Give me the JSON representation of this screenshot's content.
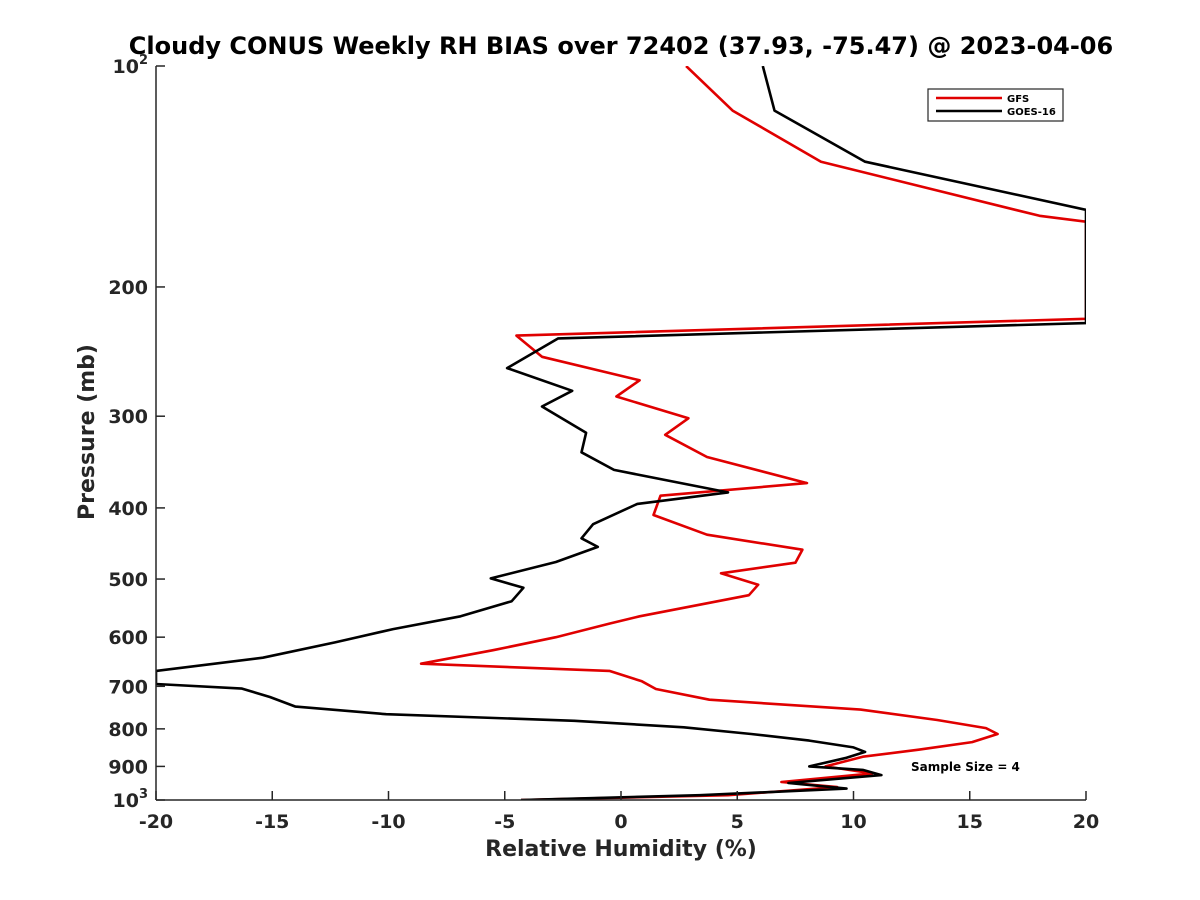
{
  "chart_data": {
    "type": "line",
    "title": "Cloudy CONUS Weekly RH BIAS over 72402 (37.93, -75.47) @ 2023-04-06",
    "xlabel": "Relative Humidity (%)",
    "ylabel": "Pressure (mb)",
    "xlim": [
      -20,
      20
    ],
    "ylim": [
      100,
      1000
    ],
    "y_scale": "log",
    "y_reversed": true,
    "grid": false,
    "legend_position": "top-right",
    "x_ticks": [
      -20,
      -15,
      -10,
      -5,
      0,
      5,
      10,
      15,
      20
    ],
    "x_tick_labels": [
      "-20",
      "-15",
      "-10",
      "-5",
      "0",
      "5",
      "10",
      "15",
      "20"
    ],
    "y_ticks": [
      100,
      200,
      300,
      400,
      500,
      600,
      700,
      800,
      900,
      1000
    ],
    "y_tick_labels": [
      {
        "value": 100,
        "base": "10",
        "exp": "2"
      },
      {
        "value": 200,
        "base": "200",
        "exp": ""
      },
      {
        "value": 300,
        "base": "300",
        "exp": ""
      },
      {
        "value": 400,
        "base": "400",
        "exp": ""
      },
      {
        "value": 500,
        "base": "500",
        "exp": ""
      },
      {
        "value": 600,
        "base": "600",
        "exp": ""
      },
      {
        "value": 700,
        "base": "700",
        "exp": ""
      },
      {
        "value": 800,
        "base": "800",
        "exp": ""
      },
      {
        "value": 900,
        "base": "900",
        "exp": ""
      },
      {
        "value": 1000,
        "base": "10",
        "exp": "3"
      }
    ],
    "annotation": "Sample Size = 4",
    "series": [
      {
        "name": "GFS",
        "color": "#e00000",
        "points": [
          [
            2.8,
            100
          ],
          [
            4.8,
            115
          ],
          [
            8.6,
            135
          ],
          [
            18.0,
            160
          ],
          [
            20.0,
            163
          ],
          [
            20.0,
            221
          ],
          [
            -4.5,
            233
          ],
          [
            -3.4,
            249
          ],
          [
            0.8,
            268
          ],
          [
            -0.2,
            282
          ],
          [
            2.9,
            302
          ],
          [
            1.9,
            318
          ],
          [
            3.7,
            341
          ],
          [
            8.0,
            370
          ],
          [
            1.7,
            385
          ],
          [
            1.4,
            409
          ],
          [
            3.7,
            435
          ],
          [
            7.8,
            456
          ],
          [
            7.5,
            475
          ],
          [
            4.3,
            491
          ],
          [
            5.9,
            509
          ],
          [
            5.5,
            526
          ],
          [
            0.8,
            562
          ],
          [
            -0.5,
            575
          ],
          [
            -2.8,
            600
          ],
          [
            -5.5,
            625
          ],
          [
            -8.6,
            652
          ],
          [
            -0.5,
            667
          ],
          [
            0.9,
            689
          ],
          [
            1.5,
            706
          ],
          [
            3.8,
            730
          ],
          [
            10.3,
            753
          ],
          [
            13.6,
            778
          ],
          [
            15.7,
            798
          ],
          [
            16.2,
            813
          ],
          [
            15.1,
            834
          ],
          [
            12.8,
            854
          ],
          [
            10.4,
            873
          ],
          [
            8.8,
            900
          ],
          [
            10.8,
            920
          ],
          [
            6.9,
            945
          ],
          [
            9.3,
            960
          ],
          [
            4.6,
            985
          ],
          [
            -4.3,
            1000
          ]
        ]
      },
      {
        "name": "GOES-16",
        "color": "#000000",
        "points": [
          [
            6.1,
            100
          ],
          [
            6.6,
            115
          ],
          [
            10.5,
            135
          ],
          [
            20.0,
            157
          ],
          [
            20.0,
            224
          ],
          [
            -2.7,
            235
          ],
          [
            -4.9,
            258
          ],
          [
            -2.1,
            277
          ],
          [
            -3.4,
            291
          ],
          [
            -1.5,
            316
          ],
          [
            -1.7,
            336
          ],
          [
            -0.3,
            355
          ],
          [
            4.6,
            381
          ],
          [
            0.7,
            395
          ],
          [
            -1.2,
            421
          ],
          [
            -1.7,
            440
          ],
          [
            -1.0,
            452
          ],
          [
            -2.8,
            474
          ],
          [
            -5.6,
            499
          ],
          [
            -4.2,
            514
          ],
          [
            -4.7,
            536
          ],
          [
            -6.9,
            562
          ],
          [
            -9.8,
            585
          ],
          [
            -12.3,
            610
          ],
          [
            -15.4,
            640
          ],
          [
            -20.0,
            667
          ],
          [
            -20.0,
            695
          ],
          [
            -16.3,
            705
          ],
          [
            -15.1,
            724
          ],
          [
            -14.0,
            746
          ],
          [
            -10.1,
            764
          ],
          [
            -2.0,
            780
          ],
          [
            2.7,
            796
          ],
          [
            5.6,
            813
          ],
          [
            8.1,
            830
          ],
          [
            10.0,
            848
          ],
          [
            10.5,
            860
          ],
          [
            9.7,
            876
          ],
          [
            8.1,
            900
          ],
          [
            10.4,
            910
          ],
          [
            11.2,
            925
          ],
          [
            7.2,
            948
          ],
          [
            9.7,
            965
          ],
          [
            3.4,
            985
          ],
          [
            -4.3,
            1000
          ]
        ]
      }
    ]
  }
}
